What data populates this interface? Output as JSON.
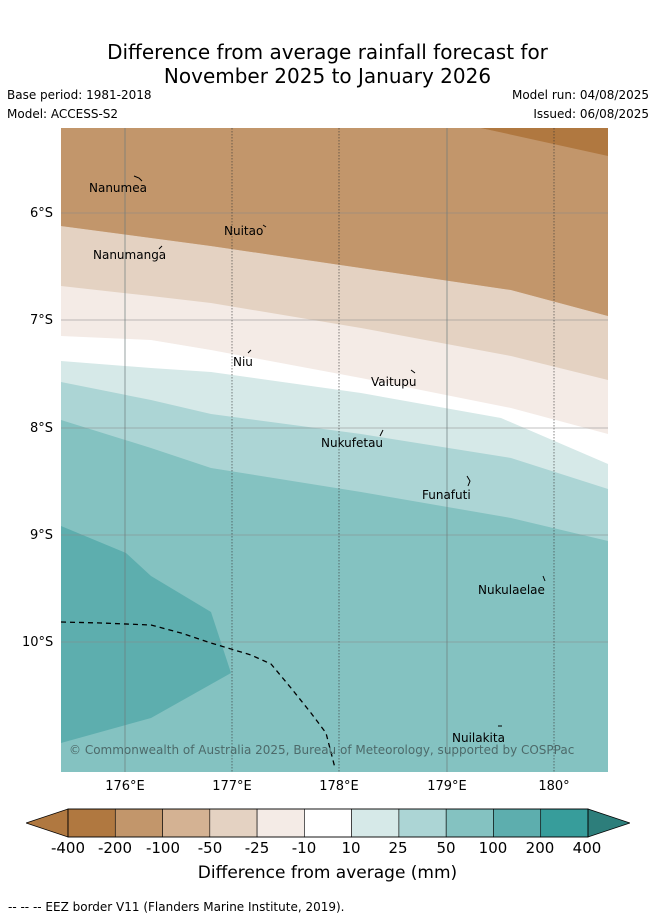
{
  "title_line1": "Difference from average rainfall forecast for",
  "title_line2": "November 2025 to January 2026",
  "base_period": "Base period: 1981-2018",
  "model": "Model: ACCESS-S2",
  "model_run": "Model run: 04/08/2025",
  "issued": "Issued: 06/08/2025",
  "y_ticks": [
    "6°S",
    "7°S",
    "8°S",
    "9°S",
    "10°S"
  ],
  "x_ticks": [
    "176°E",
    "177°E",
    "178°E",
    "179°E",
    "180°"
  ],
  "islands": [
    "Nanumea",
    "Nuitao",
    "Nanumanga",
    "Niu",
    "Vaitupu",
    "Nukufetau",
    "Funafuti",
    "Nukulaelae",
    "Nuilakita"
  ],
  "copyright": "© Commonwealth of Australia 2025, Bureau of Meteorology, supported by COSPPac",
  "colorbar": {
    "ticks": [
      "-400",
      "-200",
      "-100",
      "-50",
      "-25",
      "-10",
      "10",
      "25",
      "50",
      "100",
      "200",
      "400"
    ],
    "colors": [
      "#b07840",
      "#c2966b",
      "#d4b293",
      "#e4d2c2",
      "#f4ebe6",
      "#ffffff",
      "#d6e9e8",
      "#acd5d5",
      "#84c2c1",
      "#5daeae",
      "#379d9b",
      "#2d7e7b"
    ],
    "label": "Difference from average (mm)"
  },
  "legend": "--  --  -- EEZ border V11 (Flanders Marine Institute, 2019)."
}
